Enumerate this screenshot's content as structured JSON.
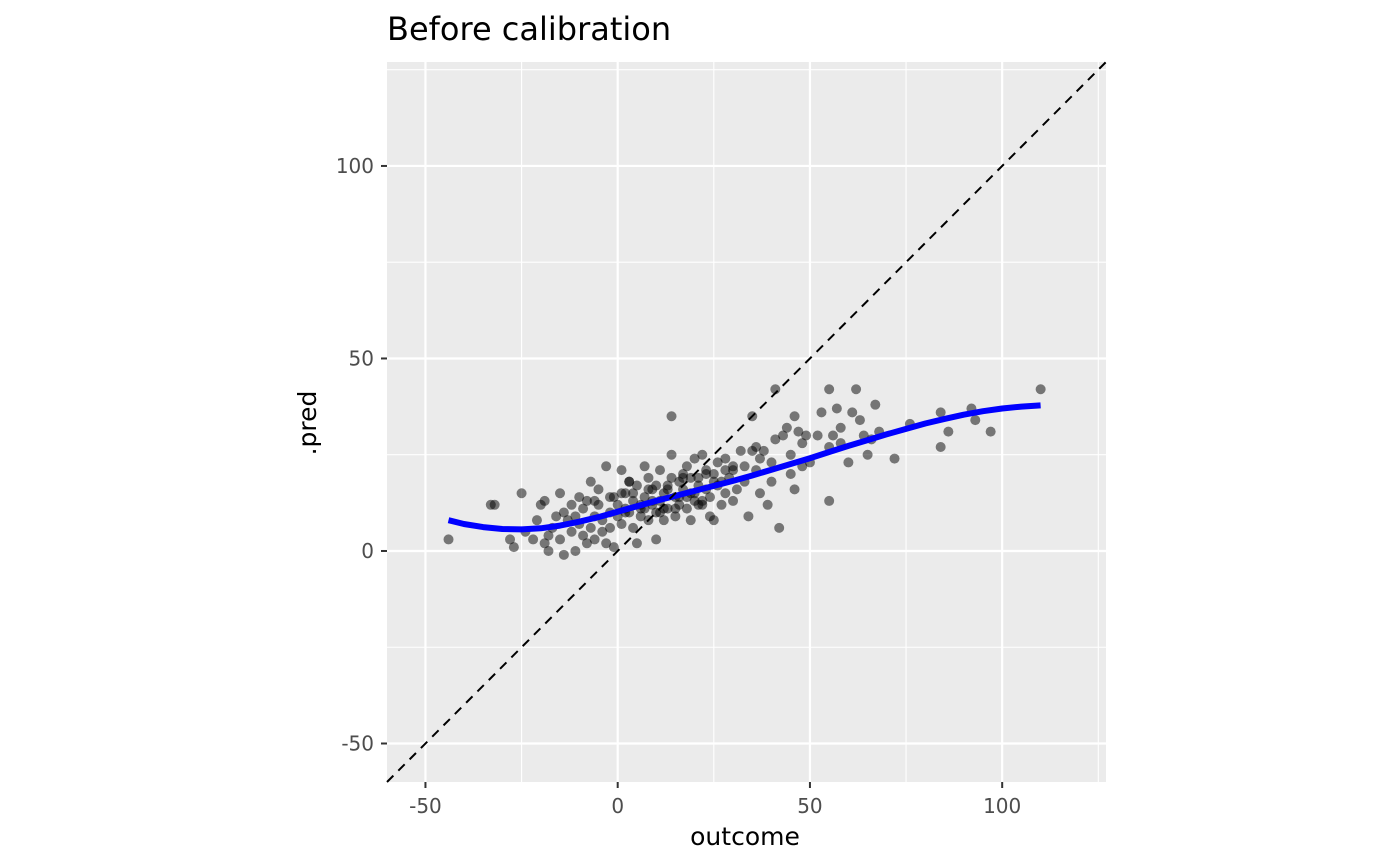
{
  "chart_data": {
    "type": "scatter",
    "title": "Before calibration",
    "xlabel": "outcome",
    "ylabel": ".pred",
    "xlim": [
      -60,
      127
    ],
    "ylim": [
      -60,
      127
    ],
    "x_ticks": [
      -50,
      0,
      50,
      100
    ],
    "x_tick_labels": [
      "-50",
      "0",
      "50",
      "100"
    ],
    "y_ticks": [
      -50,
      0,
      50,
      100
    ],
    "y_tick_labels": [
      "-50",
      "0",
      "50",
      "100"
    ],
    "grid": true,
    "panel_background": "#ebebeb",
    "point_color": "#000000",
    "point_alpha": 0.5,
    "smooth_color": "#0000ff",
    "reference_line": {
      "slope": 1,
      "intercept": 0,
      "style": "dashed",
      "color": "#000000"
    },
    "smooth_curve": {
      "x": [
        -44,
        -40,
        -35,
        -30,
        -25,
        -20,
        -15,
        -10,
        -5,
        0,
        5,
        10,
        15,
        20,
        25,
        30,
        35,
        40,
        45,
        50,
        55,
        60,
        65,
        70,
        75,
        80,
        85,
        90,
        95,
        100,
        105,
        110
      ],
      "y": [
        8.0,
        7.0,
        6.2,
        5.7,
        5.6,
        5.9,
        6.6,
        7.6,
        8.8,
        10.2,
        11.6,
        13.0,
        14.3,
        15.6,
        16.9,
        18.2,
        19.6,
        21.1,
        22.6,
        24.1,
        25.7,
        27.3,
        28.8,
        30.3,
        31.7,
        33.1,
        34.3,
        35.4,
        36.3,
        37.0,
        37.5,
        37.8
      ]
    },
    "points": {
      "x": [
        -44,
        -33,
        -32,
        -28,
        -27,
        -25,
        -24,
        -22,
        -21,
        -20,
        -19,
        -19,
        -18,
        -18,
        -17,
        -16,
        -15,
        -15,
        -14,
        -14,
        -13,
        -12,
        -12,
        -11,
        -11,
        -10,
        -10,
        -9,
        -9,
        -8,
        -8,
        -7,
        -7,
        -6,
        -6,
        -5,
        -5,
        -4,
        -4,
        -3,
        -3,
        -2,
        -2,
        -1,
        -1,
        0,
        0,
        1,
        1,
        2,
        2,
        3,
        3,
        4,
        4,
        5,
        5,
        6,
        6,
        7,
        7,
        8,
        8,
        9,
        9,
        10,
        10,
        11,
        11,
        12,
        12,
        13,
        13,
        14,
        14,
        15,
        15,
        16,
        16,
        17,
        17,
        18,
        18,
        19,
        19,
        20,
        20,
        21,
        21,
        22,
        22,
        23,
        23,
        24,
        24,
        25,
        25,
        26,
        26,
        27,
        28,
        28,
        29,
        30,
        30,
        31,
        32,
        33,
        34,
        35,
        36,
        36,
        37,
        38,
        39,
        40,
        40,
        41,
        42,
        43,
        44,
        45,
        46,
        46,
        47,
        48,
        49,
        50,
        52,
        53,
        55,
        55,
        56,
        57,
        58,
        60,
        61,
        62,
        63,
        65,
        66,
        67,
        68,
        72,
        76,
        84,
        84,
        86,
        92,
        93,
        97,
        110,
        14,
        41,
        55,
        1,
        3,
        8,
        12,
        18,
        22,
        -2,
        6,
        10,
        15,
        20,
        25,
        30,
        4,
        9,
        13,
        17,
        21,
        27,
        33,
        37,
        -6,
        2,
        7,
        11,
        16,
        19,
        23,
        28,
        35,
        45,
        48,
        58,
        64
      ],
      "y": [
        3,
        12,
        12,
        3,
        1,
        15,
        5,
        3,
        8,
        12,
        13,
        2,
        0,
        4,
        6,
        9,
        15,
        3,
        -1,
        10,
        8,
        5,
        12,
        0,
        9,
        14,
        7,
        4,
        11,
        2,
        13,
        18,
        6,
        9,
        3,
        12,
        16,
        8,
        5,
        2,
        22,
        10,
        6,
        14,
        1,
        9,
        12,
        21,
        7,
        15,
        11,
        18,
        10,
        6,
        13,
        2,
        17,
        11,
        9,
        22,
        14,
        19,
        8,
        12,
        16,
        10,
        3,
        13,
        21,
        8,
        15,
        17,
        11,
        19,
        25,
        14,
        9,
        12,
        18,
        16,
        20,
        11,
        22,
        15,
        8,
        24,
        13,
        17,
        19,
        12,
        25,
        16,
        21,
        14,
        9,
        20,
        8,
        17,
        23,
        12,
        15,
        24,
        19,
        13,
        22,
        16,
        26,
        18,
        9,
        35,
        21,
        27,
        15,
        26,
        12,
        23,
        18,
        29,
        6,
        30,
        32,
        20,
        35,
        16,
        31,
        22,
        30,
        23,
        30,
        36,
        27,
        42,
        30,
        37,
        32,
        23,
        36,
        42,
        34,
        25,
        29,
        38,
        31,
        24,
        33,
        27,
        36,
        31,
        37,
        34,
        31,
        42,
        35,
        42,
        13,
        15,
        18,
        16,
        11,
        14,
        13,
        14,
        12,
        17,
        11,
        15,
        18,
        21,
        15,
        13,
        16,
        19,
        12,
        18,
        22,
        24,
        13,
        10,
        11,
        10,
        14,
        19,
        20,
        21,
        26,
        25,
        28,
        28,
        30
      ]
    }
  }
}
